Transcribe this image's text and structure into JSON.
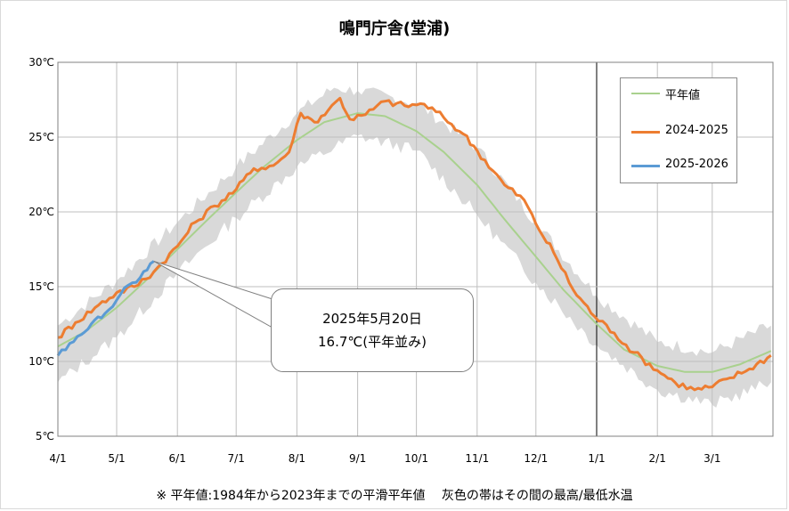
{
  "colors": {
    "normal": "#a9d18e",
    "y2024": "#ed7d31",
    "y2025": "#5b9bd5",
    "band": "#d9d9d9",
    "grid": "#bfbfbf"
  },
  "chart_data": {
    "type": "line",
    "title": "鳴門庁舎(堂浦)",
    "xlabel": "",
    "ylabel": "",
    "x_tick_labels": [
      "4/1",
      "5/1",
      "6/1",
      "7/1",
      "8/1",
      "9/1",
      "10/1",
      "11/1",
      "12/1",
      "1/1",
      "2/1",
      "3/1"
    ],
    "y_tick_labels": [
      "5℃",
      "10℃",
      "15℃",
      "20℃",
      "25℃",
      "30℃"
    ],
    "ylim": [
      5,
      30
    ],
    "grid": true,
    "legend_position": "top-right",
    "year_boundary": "1/1",
    "series": [
      {
        "name": "平年値",
        "points": [
          [
            "4/1",
            11.0
          ],
          [
            "4/15",
            12.0
          ],
          [
            "5/1",
            13.6
          ],
          [
            "5/15",
            15.3
          ],
          [
            "6/1",
            17.5
          ],
          [
            "6/15",
            19.3
          ],
          [
            "7/1",
            21.3
          ],
          [
            "7/15",
            23.0
          ],
          [
            "8/1",
            24.8
          ],
          [
            "8/15",
            26.0
          ],
          [
            "9/1",
            26.6
          ],
          [
            "9/15",
            26.4
          ],
          [
            "10/1",
            25.4
          ],
          [
            "10/15",
            24.0
          ],
          [
            "11/1",
            21.8
          ],
          [
            "11/15",
            19.5
          ],
          [
            "12/1",
            17.0
          ],
          [
            "12/15",
            14.8
          ],
          [
            "1/1",
            12.5
          ],
          [
            "1/15",
            10.8
          ],
          [
            "2/1",
            9.7
          ],
          [
            "2/15",
            9.3
          ],
          [
            "3/1",
            9.3
          ],
          [
            "3/15",
            9.8
          ],
          [
            "3/31",
            10.7
          ]
        ]
      },
      {
        "name": "2024-2025",
        "points": [
          [
            "4/1",
            11.6
          ],
          [
            "4/10",
            12.6
          ],
          [
            "4/20",
            13.6
          ],
          [
            "5/1",
            14.6
          ],
          [
            "5/10",
            15.0
          ],
          [
            "5/20",
            16.0
          ],
          [
            "6/1",
            17.7
          ],
          [
            "6/10",
            19.3
          ],
          [
            "6/20",
            20.4
          ],
          [
            "7/1",
            21.5
          ],
          [
            "7/10",
            22.9
          ],
          [
            "7/20",
            23.1
          ],
          [
            "7/28",
            24.0
          ],
          [
            "8/3",
            26.6
          ],
          [
            "8/10",
            26.0
          ],
          [
            "8/17",
            26.8
          ],
          [
            "8/23",
            27.6
          ],
          [
            "8/28",
            26.2
          ],
          [
            "9/5",
            26.5
          ],
          [
            "9/15",
            27.4
          ],
          [
            "9/25",
            27.1
          ],
          [
            "10/5",
            27.2
          ],
          [
            "10/15",
            26.3
          ],
          [
            "10/25",
            25.2
          ],
          [
            "11/1",
            24.1
          ],
          [
            "11/15",
            21.8
          ],
          [
            "11/25",
            20.8
          ],
          [
            "12/1",
            19.2
          ],
          [
            "12/10",
            17.3
          ],
          [
            "12/20",
            14.8
          ],
          [
            "12/31",
            13.0
          ],
          [
            "1/10",
            11.9
          ],
          [
            "1/20",
            10.6
          ],
          [
            "2/1",
            9.4
          ],
          [
            "2/10",
            8.6
          ],
          [
            "2/20",
            8.1
          ],
          [
            "3/1",
            8.3
          ],
          [
            "3/10",
            8.9
          ],
          [
            "3/20",
            9.5
          ],
          [
            "3/31",
            10.4
          ]
        ]
      },
      {
        "name": "2025-2026",
        "points": [
          [
            "4/1",
            10.4
          ],
          [
            "4/7",
            11.2
          ],
          [
            "4/13",
            11.8
          ],
          [
            "4/18",
            12.5
          ],
          [
            "4/25",
            13.2
          ],
          [
            "5/1",
            14.1
          ],
          [
            "5/7",
            15.1
          ],
          [
            "5/13",
            15.6
          ],
          [
            "5/20",
            16.7
          ]
        ]
      }
    ],
    "band": {
      "label": "最高/最低水温",
      "upper": [
        [
          "4/1",
          12.4
        ],
        [
          "5/1",
          15.4
        ],
        [
          "6/1",
          19.3
        ],
        [
          "7/1",
          23.0
        ],
        [
          "8/1",
          26.6
        ],
        [
          "8/20",
          28.3
        ],
        [
          "9/1",
          28.1
        ],
        [
          "10/1",
          27.3
        ],
        [
          "11/1",
          24.3
        ],
        [
          "12/1",
          19.3
        ],
        [
          "1/1",
          14.4
        ],
        [
          "2/1",
          11.3
        ],
        [
          "3/1",
          10.6
        ],
        [
          "3/31",
          12.4
        ]
      ],
      "lower": [
        [
          "4/1",
          8.6
        ],
        [
          "5/1",
          11.6
        ],
        [
          "6/1",
          15.9
        ],
        [
          "7/1",
          19.6
        ],
        [
          "8/1",
          23.0
        ],
        [
          "9/1",
          25.1
        ],
        [
          "10/1",
          24.1
        ],
        [
          "11/1",
          19.8
        ],
        [
          "12/1",
          15.3
        ],
        [
          "1/1",
          11.1
        ],
        [
          "2/1",
          8.1
        ],
        [
          "3/1",
          7.1
        ],
        [
          "3/31",
          8.6
        ]
      ]
    },
    "annotation": {
      "line1": "2025年5月20日",
      "line2": "16.7℃(平年並み)",
      "point": [
        "5/20",
        16.7
      ]
    },
    "footnote": "※ 平年値:1984年から2023年までの平滑平年値　 灰色の帯はその間の最高/最低水温"
  }
}
